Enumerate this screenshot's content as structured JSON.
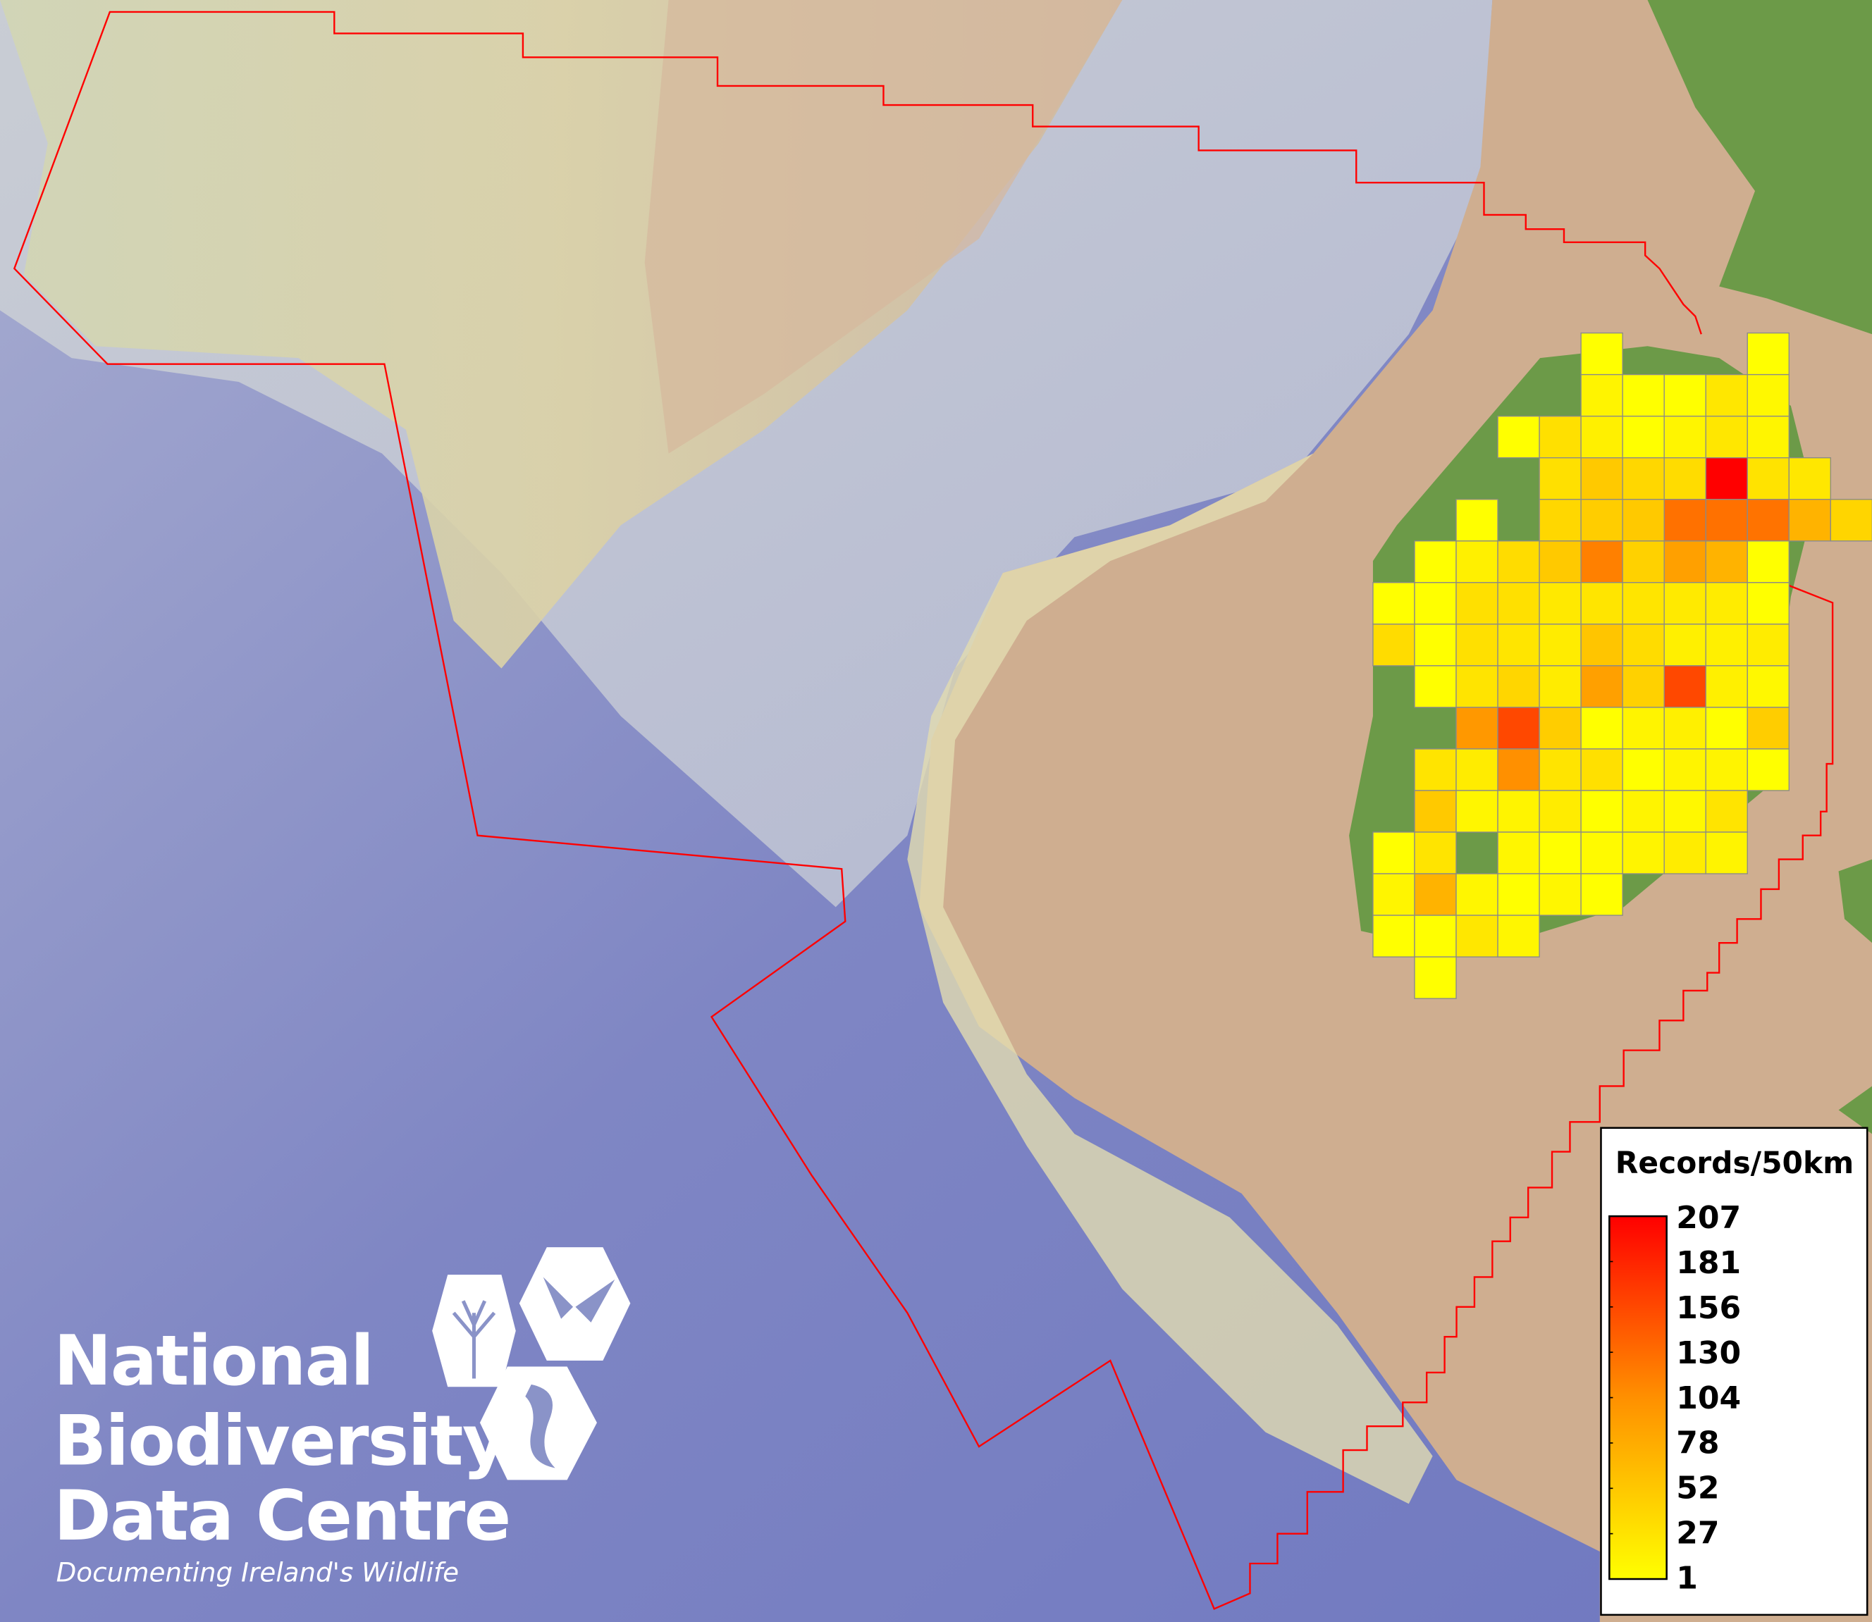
{
  "map": {
    "boundary_color": "#ff0000",
    "grid_resolution": "50km",
    "cells": [
      [
        null,
        null,
        null,
        null,
        null,
        1,
        null,
        null,
        null,
        1,
        null
      ],
      [
        null,
        null,
        null,
        null,
        null,
        10,
        1,
        1,
        20,
        7,
        null
      ],
      [
        null,
        null,
        null,
        1,
        26,
        13,
        1,
        9,
        20,
        9,
        null
      ],
      [
        null,
        null,
        null,
        null,
        26,
        45,
        33,
        29,
        207,
        24,
        20
      ],
      [
        null,
        null,
        1,
        null,
        33,
        41,
        45,
        116,
        116,
        114,
        62,
        35
      ],
      [
        null,
        1,
        13,
        29,
        45,
        104,
        38,
        78,
        62,
        1,
        null
      ],
      [
        1,
        1,
        26,
        26,
        19,
        22,
        22,
        18,
        16,
        1,
        null
      ],
      [
        29,
        1,
        26,
        22,
        16,
        48,
        29,
        13,
        13,
        16,
        null
      ],
      [
        null,
        1,
        23,
        34,
        16,
        78,
        38,
        149,
        13,
        7,
        null
      ],
      [
        null,
        null,
        84,
        149,
        41,
        1,
        10,
        13,
        1,
        41,
        null
      ],
      [
        null,
        23,
        16,
        91,
        23,
        26,
        1,
        10,
        10,
        1,
        null
      ],
      [
        null,
        45,
        8,
        10,
        16,
        1,
        10,
        7,
        23,
        null,
        null
      ],
      [
        1,
        23,
        null,
        8,
        1,
        5,
        10,
        16,
        10,
        null,
        null
      ],
      [
        9,
        62,
        8,
        1,
        8,
        1,
        null,
        null,
        null,
        null,
        null
      ],
      [
        1,
        1,
        20,
        8,
        null,
        null,
        null,
        null,
        null,
        null,
        null
      ],
      [
        null,
        1,
        null,
        null,
        null,
        null,
        null,
        null,
        null,
        null,
        null
      ]
    ]
  },
  "legend": {
    "title": "Records/50km",
    "min": 1,
    "max": 207,
    "color_low": "#ffff00",
    "color_high": "#ff0000",
    "labels": [
      "207",
      "181",
      "156",
      "130",
      "104",
      "78",
      "52",
      "27",
      "1"
    ]
  },
  "logo": {
    "line1": "National",
    "line2": "Biodiversity",
    "line3": "Data Centre",
    "tagline": "Documenting Ireland's Wildlife",
    "icons": [
      "tree-icon",
      "butterfly-icon",
      "seahorse-icon"
    ]
  }
}
